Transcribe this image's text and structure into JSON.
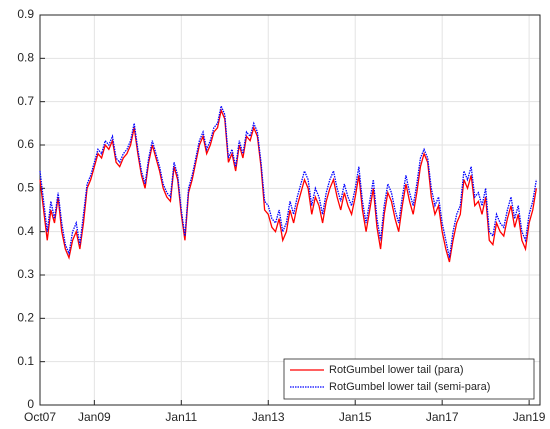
{
  "chart_data": {
    "type": "line",
    "x": [
      "2007-10",
      "2007-11",
      "2007-12",
      "2008-01",
      "2008-02",
      "2008-03",
      "2008-04",
      "2008-05",
      "2008-06",
      "2008-07",
      "2008-08",
      "2008-09",
      "2008-10",
      "2008-11",
      "2008-12",
      "2009-01",
      "2009-02",
      "2009-03",
      "2009-04",
      "2009-05",
      "2009-06",
      "2009-07",
      "2009-08",
      "2009-09",
      "2009-10",
      "2009-11",
      "2009-12",
      "2010-01",
      "2010-02",
      "2010-03",
      "2010-04",
      "2010-05",
      "2010-06",
      "2010-07",
      "2010-08",
      "2010-09",
      "2010-10",
      "2010-11",
      "2010-12",
      "2011-01",
      "2011-02",
      "2011-03",
      "2011-04",
      "2011-05",
      "2011-06",
      "2011-07",
      "2011-08",
      "2011-09",
      "2011-10",
      "2011-11",
      "2011-12",
      "2012-01",
      "2012-02",
      "2012-03",
      "2012-04",
      "2012-05",
      "2012-06",
      "2012-07",
      "2012-08",
      "2012-09",
      "2012-10",
      "2012-11",
      "2012-12",
      "2013-01",
      "2013-02",
      "2013-03",
      "2013-04",
      "2013-05",
      "2013-06",
      "2013-07",
      "2013-08",
      "2013-09",
      "2013-10",
      "2013-11",
      "2013-12",
      "2014-01",
      "2014-02",
      "2014-03",
      "2014-04",
      "2014-05",
      "2014-06",
      "2014-07",
      "2014-08",
      "2014-09",
      "2014-10",
      "2014-11",
      "2014-12",
      "2015-01",
      "2015-02",
      "2015-03",
      "2015-04",
      "2015-05",
      "2015-06",
      "2015-07",
      "2015-08",
      "2015-09",
      "2015-10",
      "2015-11",
      "2015-12",
      "2016-01",
      "2016-02",
      "2016-03",
      "2016-04",
      "2016-05",
      "2016-06",
      "2016-07",
      "2016-08",
      "2016-09",
      "2016-10",
      "2016-11",
      "2016-12",
      "2017-01",
      "2017-02",
      "2017-03",
      "2017-04",
      "2017-05",
      "2017-06",
      "2017-07",
      "2017-08",
      "2017-09",
      "2017-10",
      "2017-11",
      "2017-12",
      "2018-01",
      "2018-02",
      "2018-03",
      "2018-04",
      "2018-05",
      "2018-06",
      "2018-07",
      "2018-08",
      "2018-09",
      "2018-10",
      "2018-11",
      "2018-12",
      "2019-01",
      "2019-02",
      "2019-03"
    ],
    "series": [
      {
        "name": "RotGumbel lower tail (para)",
        "color": "#ff0000",
        "style": "solid",
        "values": [
          0.52,
          0.45,
          0.38,
          0.45,
          0.42,
          0.48,
          0.4,
          0.36,
          0.34,
          0.38,
          0.4,
          0.36,
          0.42,
          0.5,
          0.52,
          0.55,
          0.58,
          0.57,
          0.6,
          0.59,
          0.61,
          0.56,
          0.55,
          0.57,
          0.58,
          0.6,
          0.64,
          0.58,
          0.53,
          0.5,
          0.56,
          0.6,
          0.57,
          0.54,
          0.5,
          0.48,
          0.47,
          0.55,
          0.52,
          0.44,
          0.38,
          0.49,
          0.52,
          0.56,
          0.6,
          0.62,
          0.58,
          0.6,
          0.63,
          0.64,
          0.68,
          0.66,
          0.56,
          0.58,
          0.54,
          0.6,
          0.57,
          0.62,
          0.61,
          0.64,
          0.62,
          0.55,
          0.45,
          0.44,
          0.41,
          0.4,
          0.43,
          0.38,
          0.4,
          0.45,
          0.42,
          0.46,
          0.49,
          0.52,
          0.5,
          0.44,
          0.48,
          0.46,
          0.42,
          0.47,
          0.5,
          0.52,
          0.48,
          0.45,
          0.49,
          0.46,
          0.44,
          0.48,
          0.53,
          0.45,
          0.4,
          0.45,
          0.5,
          0.41,
          0.36,
          0.44,
          0.49,
          0.47,
          0.43,
          0.4,
          0.46,
          0.51,
          0.47,
          0.44,
          0.49,
          0.55,
          0.58,
          0.56,
          0.48,
          0.44,
          0.46,
          0.4,
          0.36,
          0.33,
          0.38,
          0.42,
          0.44,
          0.52,
          0.5,
          0.53,
          0.46,
          0.47,
          0.44,
          0.48,
          0.38,
          0.37,
          0.42,
          0.4,
          0.39,
          0.43,
          0.46,
          0.41,
          0.44,
          0.38,
          0.36,
          0.42,
          0.45,
          0.5
        ]
      },
      {
        "name": "RotGumbel lower tail (semi-para)",
        "color": "#0000ff",
        "style": "dotted",
        "values": [
          0.54,
          0.47,
          0.4,
          0.47,
          0.43,
          0.49,
          0.42,
          0.37,
          0.35,
          0.4,
          0.42,
          0.37,
          0.44,
          0.51,
          0.53,
          0.56,
          0.59,
          0.58,
          0.61,
          0.6,
          0.62,
          0.57,
          0.56,
          0.58,
          0.59,
          0.61,
          0.65,
          0.59,
          0.54,
          0.51,
          0.57,
          0.61,
          0.58,
          0.55,
          0.51,
          0.49,
          0.48,
          0.56,
          0.53,
          0.45,
          0.39,
          0.5,
          0.53,
          0.57,
          0.61,
          0.63,
          0.59,
          0.61,
          0.64,
          0.65,
          0.69,
          0.67,
          0.57,
          0.59,
          0.55,
          0.61,
          0.58,
          0.63,
          0.62,
          0.65,
          0.63,
          0.56,
          0.47,
          0.46,
          0.43,
          0.42,
          0.45,
          0.4,
          0.42,
          0.47,
          0.44,
          0.48,
          0.51,
          0.54,
          0.52,
          0.46,
          0.5,
          0.48,
          0.44,
          0.49,
          0.52,
          0.54,
          0.5,
          0.47,
          0.51,
          0.48,
          0.46,
          0.5,
          0.55,
          0.47,
          0.42,
          0.47,
          0.52,
          0.43,
          0.38,
          0.46,
          0.51,
          0.49,
          0.45,
          0.42,
          0.48,
          0.53,
          0.49,
          0.46,
          0.51,
          0.57,
          0.59,
          0.57,
          0.5,
          0.46,
          0.48,
          0.42,
          0.38,
          0.34,
          0.4,
          0.44,
          0.46,
          0.54,
          0.52,
          0.55,
          0.48,
          0.49,
          0.46,
          0.5,
          0.4,
          0.39,
          0.44,
          0.42,
          0.41,
          0.45,
          0.48,
          0.43,
          0.46,
          0.4,
          0.38,
          0.44,
          0.47,
          0.52
        ]
      }
    ],
    "xlim": [
      "2007-10",
      "2019-04"
    ],
    "xticks": [
      {
        "value": "2007-10",
        "label": "Oct07"
      },
      {
        "value": "2009-01",
        "label": "Jan09"
      },
      {
        "value": "2011-01",
        "label": "Jan11"
      },
      {
        "value": "2013-01",
        "label": "Jan13"
      },
      {
        "value": "2015-01",
        "label": "Jan15"
      },
      {
        "value": "2017-01",
        "label": "Jan17"
      },
      {
        "value": "2019-01",
        "label": "Jan19"
      }
    ],
    "ylim": [
      0,
      0.9
    ],
    "yticks": [
      0,
      0.1,
      0.2,
      0.3,
      0.4,
      0.5,
      0.6,
      0.7,
      0.8,
      0.9
    ],
    "grid": true,
    "legend": "lower-right"
  }
}
